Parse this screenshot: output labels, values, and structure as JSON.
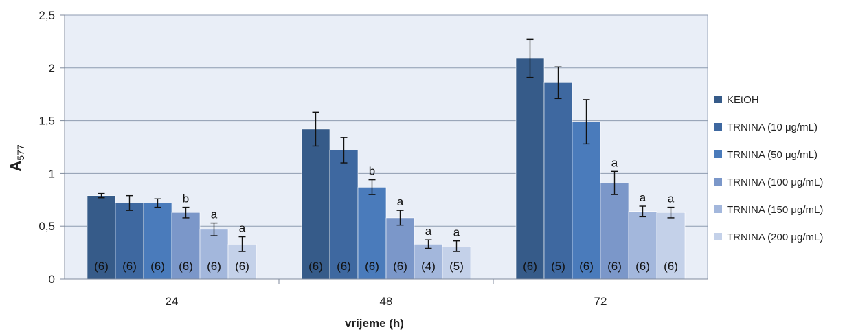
{
  "chart_data": {
    "type": "bar",
    "xlabel": "vrijeme (h)",
    "ylabel_main": "A",
    "ylabel_sub": "577",
    "ylim": [
      0,
      2.5
    ],
    "y_ticks": [
      "0",
      "0,5",
      "1",
      "1,5",
      "2",
      "2,5"
    ],
    "y_tick_values": [
      0,
      0.5,
      1,
      1.5,
      2,
      2.5
    ],
    "grid": true,
    "legend_position": "right",
    "plot_background": "#e9eef7",
    "categories": [
      "24",
      "48",
      "72"
    ],
    "series": [
      {
        "name": "KEtOH",
        "color": "#365b89",
        "values": [
          0.79,
          1.42,
          2.09
        ],
        "errors": [
          0.02,
          0.16,
          0.18
        ],
        "n": [
          "(6)",
          "(6)",
          "(6)"
        ],
        "sig": [
          "",
          "",
          ""
        ]
      },
      {
        "name": "TRNINA (10 μg/mL)",
        "color": "#3e68a0",
        "values": [
          0.72,
          1.22,
          1.86
        ],
        "errors": [
          0.07,
          0.12,
          0.15
        ],
        "n": [
          "(6)",
          "(6)",
          "(5)"
        ],
        "sig": [
          "",
          "",
          ""
        ]
      },
      {
        "name": "TRNINA (50 μg/mL)",
        "color": "#4a7bbb",
        "values": [
          0.72,
          0.87,
          1.49
        ],
        "errors": [
          0.04,
          0.07,
          0.21
        ],
        "n": [
          "(6)",
          "(6)",
          "(6)"
        ],
        "sig": [
          "",
          "b",
          ""
        ]
      },
      {
        "name": "TRNINA (100 μg/mL)",
        "color": "#7b97c9",
        "values": [
          0.63,
          0.58,
          0.91
        ],
        "errors": [
          0.05,
          0.07,
          0.11
        ],
        "n": [
          "(6)",
          "(6)",
          "(6)"
        ],
        "sig": [
          "b",
          "a",
          "a"
        ]
      },
      {
        "name": "TRNINA (150 μg/mL)",
        "color": "#a3b7dc",
        "values": [
          0.47,
          0.33,
          0.64
        ],
        "errors": [
          0.06,
          0.04,
          0.05
        ],
        "n": [
          "(6)",
          "(4)",
          "(6)"
        ],
        "sig": [
          "a",
          "a",
          "a"
        ]
      },
      {
        "name": "TRNINA (200 μg/mL)",
        "color": "#c4d1e9",
        "values": [
          0.33,
          0.31,
          0.63
        ],
        "errors": [
          0.07,
          0.05,
          0.05
        ],
        "n": [
          "(6)",
          "(5)",
          "(6)"
        ],
        "sig": [
          "a",
          "a",
          "a"
        ]
      }
    ]
  }
}
